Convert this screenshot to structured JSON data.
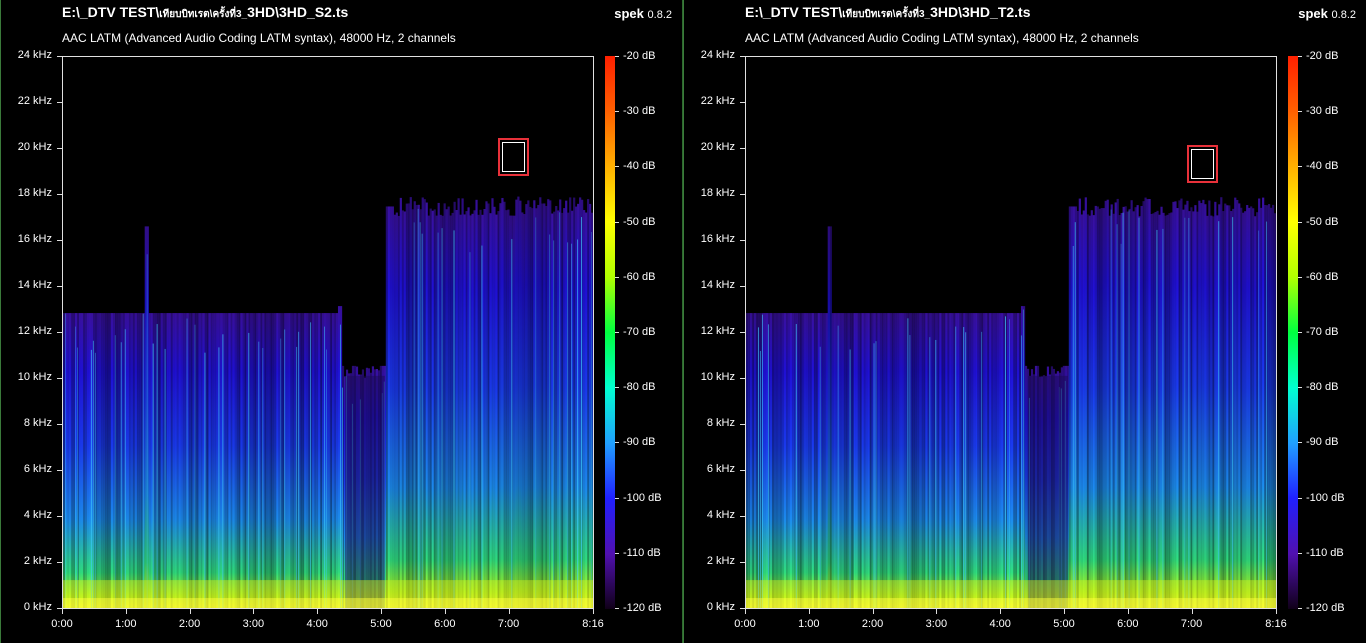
{
  "panels": [
    {
      "title_prefix": "E:\\_DTV TEST\\",
      "title_thai": "เทียบบิทเรต\\ครั้งที่3_",
      "title_suffix": "3HD\\3HD_S2.ts",
      "subtitle": "AAC LATM (Advanced Audio Coding LATM syntax), 48000 Hz, 2 channels",
      "brand_name": "spek",
      "brand_version": "0.8.2"
    },
    {
      "title_prefix": "E:\\_DTV TEST\\",
      "title_thai": "เทียบบิทเรต\\ครั้งที่3_",
      "title_suffix": "3HD\\3HD_T2.ts",
      "subtitle": "AAC LATM (Advanced Audio Coding LATM syntax), 48000 Hz, 2 channels",
      "brand_name": "spek",
      "brand_version": "0.8.2"
    }
  ],
  "freq_labels": [
    "24 kHz",
    "22 kHz",
    "20 kHz",
    "18 kHz",
    "16 kHz",
    "14 kHz",
    "12 kHz",
    "10 kHz",
    "8 kHz",
    "6 kHz",
    "4 kHz",
    "2 kHz",
    "0 kHz"
  ],
  "time_labels": [
    "0:00",
    "1:00",
    "2:00",
    "3:00",
    "4:00",
    "5:00",
    "6:00",
    "7:00",
    "8:16"
  ],
  "db_labels": [
    "-20 dB",
    "-30 dB",
    "-40 dB",
    "-50 dB",
    "-60 dB",
    "-70 dB",
    "-80 dB",
    "-90 dB",
    "-100 dB",
    "-110 dB",
    "-120 dB"
  ]
}
